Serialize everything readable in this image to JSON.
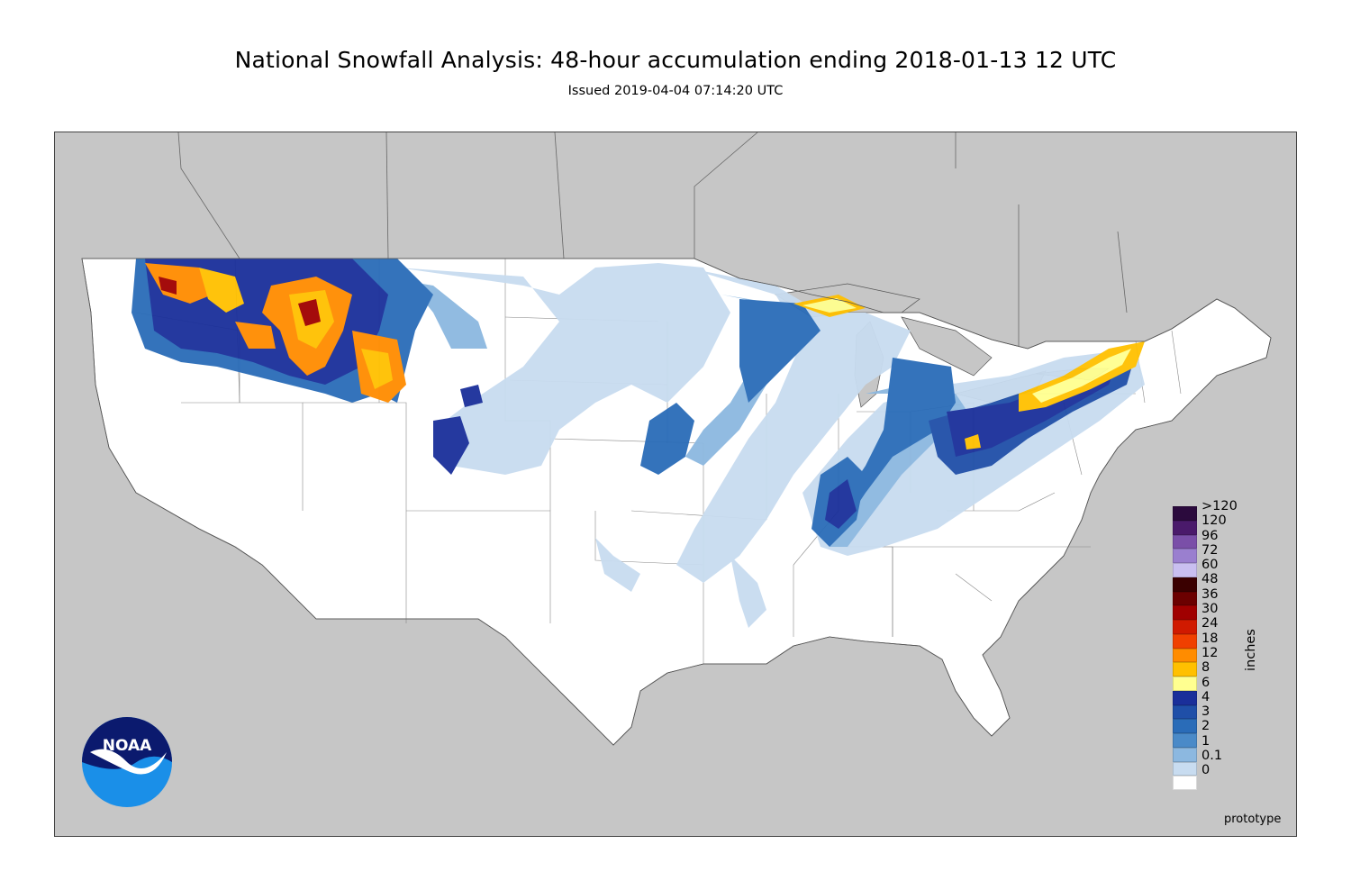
{
  "title": "National Snowfall Analysis: 48-hour accumulation ending 2018-01-13 12 UTC",
  "subtitle": "Issued 2019-04-04 07:14:20 UTC",
  "legend": {
    "units": "inches",
    "labels": [
      ">120",
      "120",
      "96",
      "72",
      "60",
      "48",
      "36",
      "30",
      "24",
      "18",
      "12",
      "8",
      "6",
      "4",
      "3",
      "2",
      "1",
      "0.1",
      "0"
    ],
    "colors": [
      "#2b0a3d",
      "#4a1a6b",
      "#7a4fa8",
      "#9a7fcf",
      "#c9bff0",
      "#3a0000",
      "#6b0000",
      "#a00000",
      "#d01a00",
      "#f04000",
      "#ff8c00",
      "#ffc000",
      "#ffff90",
      "#1a2f9a",
      "#1f4fa8",
      "#2a6cb8",
      "#4a8ac8",
      "#8cb8e0",
      "#c8dcf0",
      "#ffffff"
    ]
  },
  "footer": {
    "note": "prototype"
  },
  "logo": {
    "text": "NOAA",
    "icon": "noaa-logo-icon"
  },
  "colors": {
    "land_outside": "#c6c6c6",
    "land_us": "#ffffff",
    "border": "#444444"
  }
}
